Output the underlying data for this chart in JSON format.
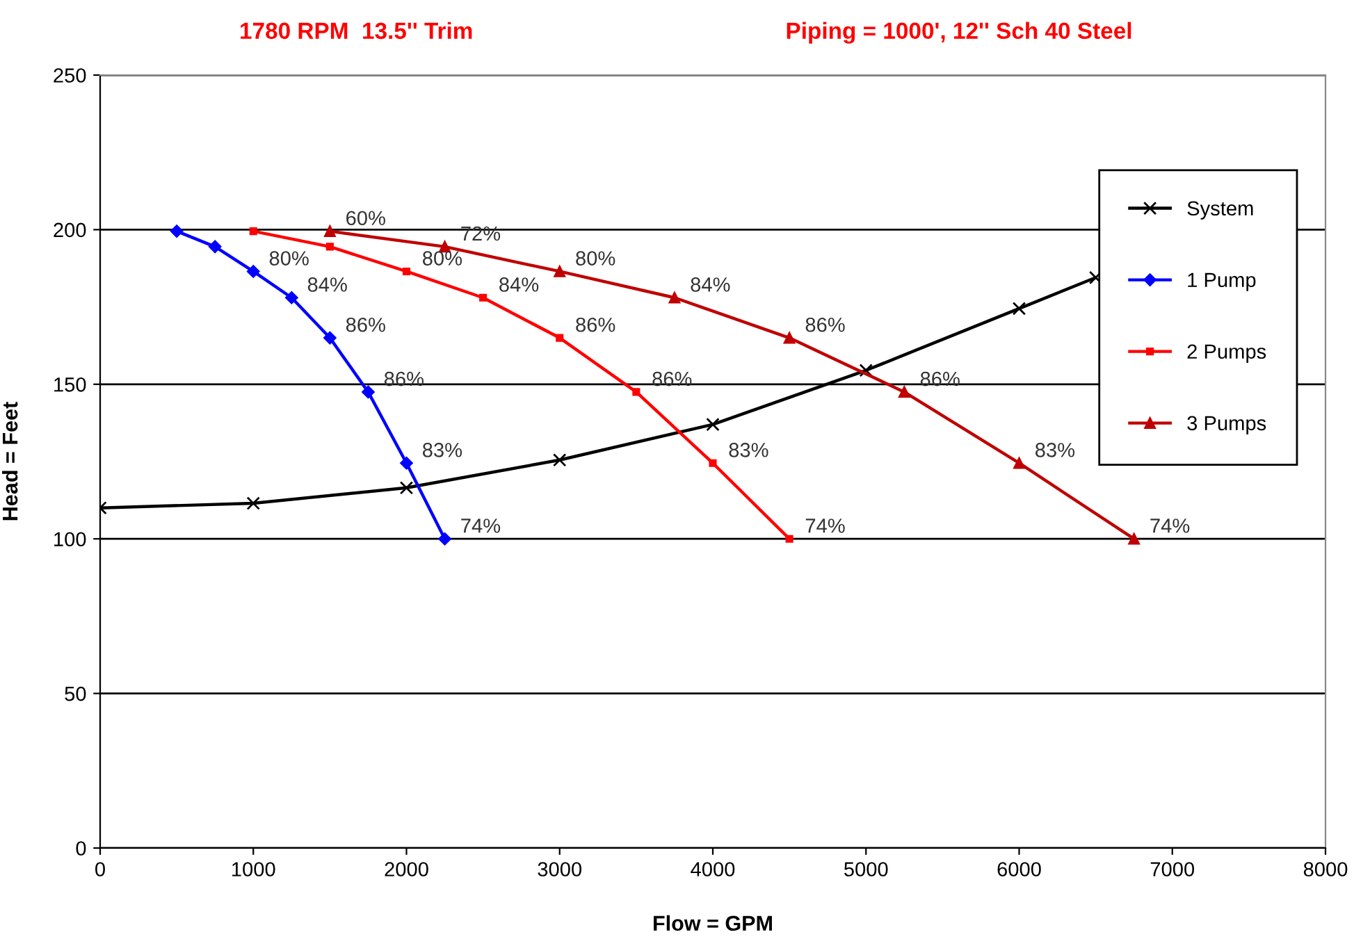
{
  "chart_data": {
    "type": "line",
    "title": "1780 RPM  13.5'' Trim",
    "subtitle": "Piping = 1000', 12'' Sch 40 Steel",
    "xlabel": "Flow = GPM",
    "ylabel": "Head = Feet",
    "xlim": [
      0,
      8000
    ],
    "xticks": [
      0,
      1000,
      2000,
      3000,
      4000,
      5000,
      6000,
      7000,
      8000
    ],
    "ylim": [
      0,
      250
    ],
    "yticks": [
      0,
      50,
      100,
      150,
      200,
      250
    ],
    "grid": "y",
    "legend": "top right",
    "series": [
      {
        "name": "System",
        "color": "#000000",
        "marker": "cross",
        "x": [
          0,
          1000,
          2000,
          3000,
          4000,
          5000,
          6000,
          6500
        ],
        "values": [
          110,
          111.5,
          116.5,
          125.5,
          137,
          154.5,
          174.5,
          184.5
        ]
      },
      {
        "name": "1 Pump",
        "color": "#0000ff",
        "marker": "diamond",
        "x": [
          500,
          750,
          1000,
          1250,
          1500,
          1750,
          2000,
          2250
        ],
        "values": [
          199.5,
          194.5,
          186.5,
          178,
          165,
          147.5,
          124.5,
          100
        ]
      },
      {
        "name": "2 Pumps",
        "color": "#ff0000",
        "marker": "square",
        "x": [
          1000,
          1500,
          2000,
          2500,
          3000,
          3500,
          4000,
          4500
        ],
        "values": [
          199.5,
          194.5,
          186.5,
          178,
          165,
          147.5,
          124.5,
          100
        ]
      },
      {
        "name": "3 Pumps",
        "color": "#c00000",
        "marker": "triangle",
        "x": [
          1500,
          2250,
          3000,
          3750,
          4500,
          5250,
          6000,
          6750
        ],
        "values": [
          199.5,
          194.5,
          186.5,
          178,
          165,
          147.5,
          124.5,
          100
        ]
      }
    ],
    "annotations": [
      {
        "text": "80%",
        "x": 1000,
        "y": 186.5
      },
      {
        "text": "84%",
        "x": 1250,
        "y": 178
      },
      {
        "text": "86%",
        "x": 1500,
        "y": 165
      },
      {
        "text": "86%",
        "x": 1750,
        "y": 147.5
      },
      {
        "text": "83%",
        "x": 2000,
        "y": 124.5
      },
      {
        "text": "74%",
        "x": 2250,
        "y": 100
      },
      {
        "text": "80%",
        "x": 2000,
        "y": 186.5
      },
      {
        "text": "84%",
        "x": 2500,
        "y": 178
      },
      {
        "text": "86%",
        "x": 3000,
        "y": 165
      },
      {
        "text": "86%",
        "x": 3500,
        "y": 147.5
      },
      {
        "text": "83%",
        "x": 4000,
        "y": 124.5
      },
      {
        "text": "74%",
        "x": 4500,
        "y": 100
      },
      {
        "text": "60%",
        "x": 1500,
        "y": 199.5
      },
      {
        "text": "72%",
        "x": 2250,
        "y": 194.5
      },
      {
        "text": "80%",
        "x": 3000,
        "y": 186.5
      },
      {
        "text": "84%",
        "x": 3750,
        "y": 178
      },
      {
        "text": "86%",
        "x": 4500,
        "y": 165
      },
      {
        "text": "86%",
        "x": 5250,
        "y": 147.5
      },
      {
        "text": "83%",
        "x": 6000,
        "y": 124.5
      },
      {
        "text": "74%",
        "x": 6750,
        "y": 100
      }
    ]
  }
}
